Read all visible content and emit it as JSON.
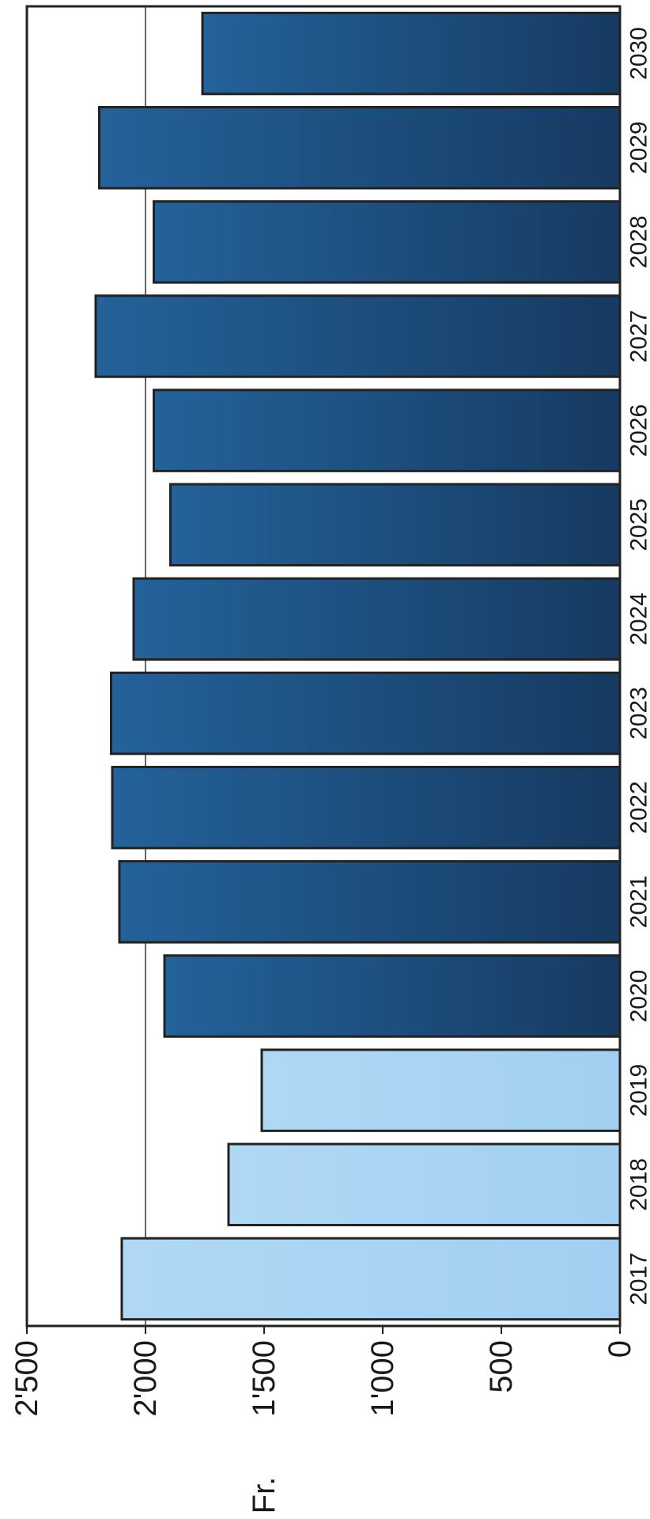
{
  "chart_data": {
    "type": "bar",
    "orientation": "horizontal",
    "ylabel": "Fr.",
    "ylim": [
      0,
      2500
    ],
    "yticks": [
      0,
      500,
      1000,
      1500,
      2000,
      2500
    ],
    "ytick_labels": [
      "0",
      "500",
      "1'000",
      "1'500",
      "2'000",
      "2'500"
    ],
    "gridlines": [
      2000
    ],
    "categories": [
      "2017",
      "2018",
      "2019",
      "2020",
      "2021",
      "2022",
      "2023",
      "2024",
      "2025",
      "2026",
      "2027",
      "2028",
      "2029",
      "2030"
    ],
    "values": [
      2100,
      1650,
      1510,
      1920,
      2110,
      2140,
      2145,
      2050,
      1895,
      1965,
      2210,
      1965,
      2195,
      1760
    ],
    "bar_styles": [
      "light",
      "light",
      "light",
      "dark",
      "dark",
      "dark",
      "dark",
      "dark",
      "dark",
      "dark",
      "dark",
      "dark",
      "dark",
      "dark"
    ],
    "colors": {
      "light_bar": "#a9d4f3",
      "light_bar_top": "#9ccbef",
      "dark_bar_left": "#24629a",
      "dark_bar_right": "#163a61",
      "grid": "#333333",
      "border": "#222222"
    }
  }
}
